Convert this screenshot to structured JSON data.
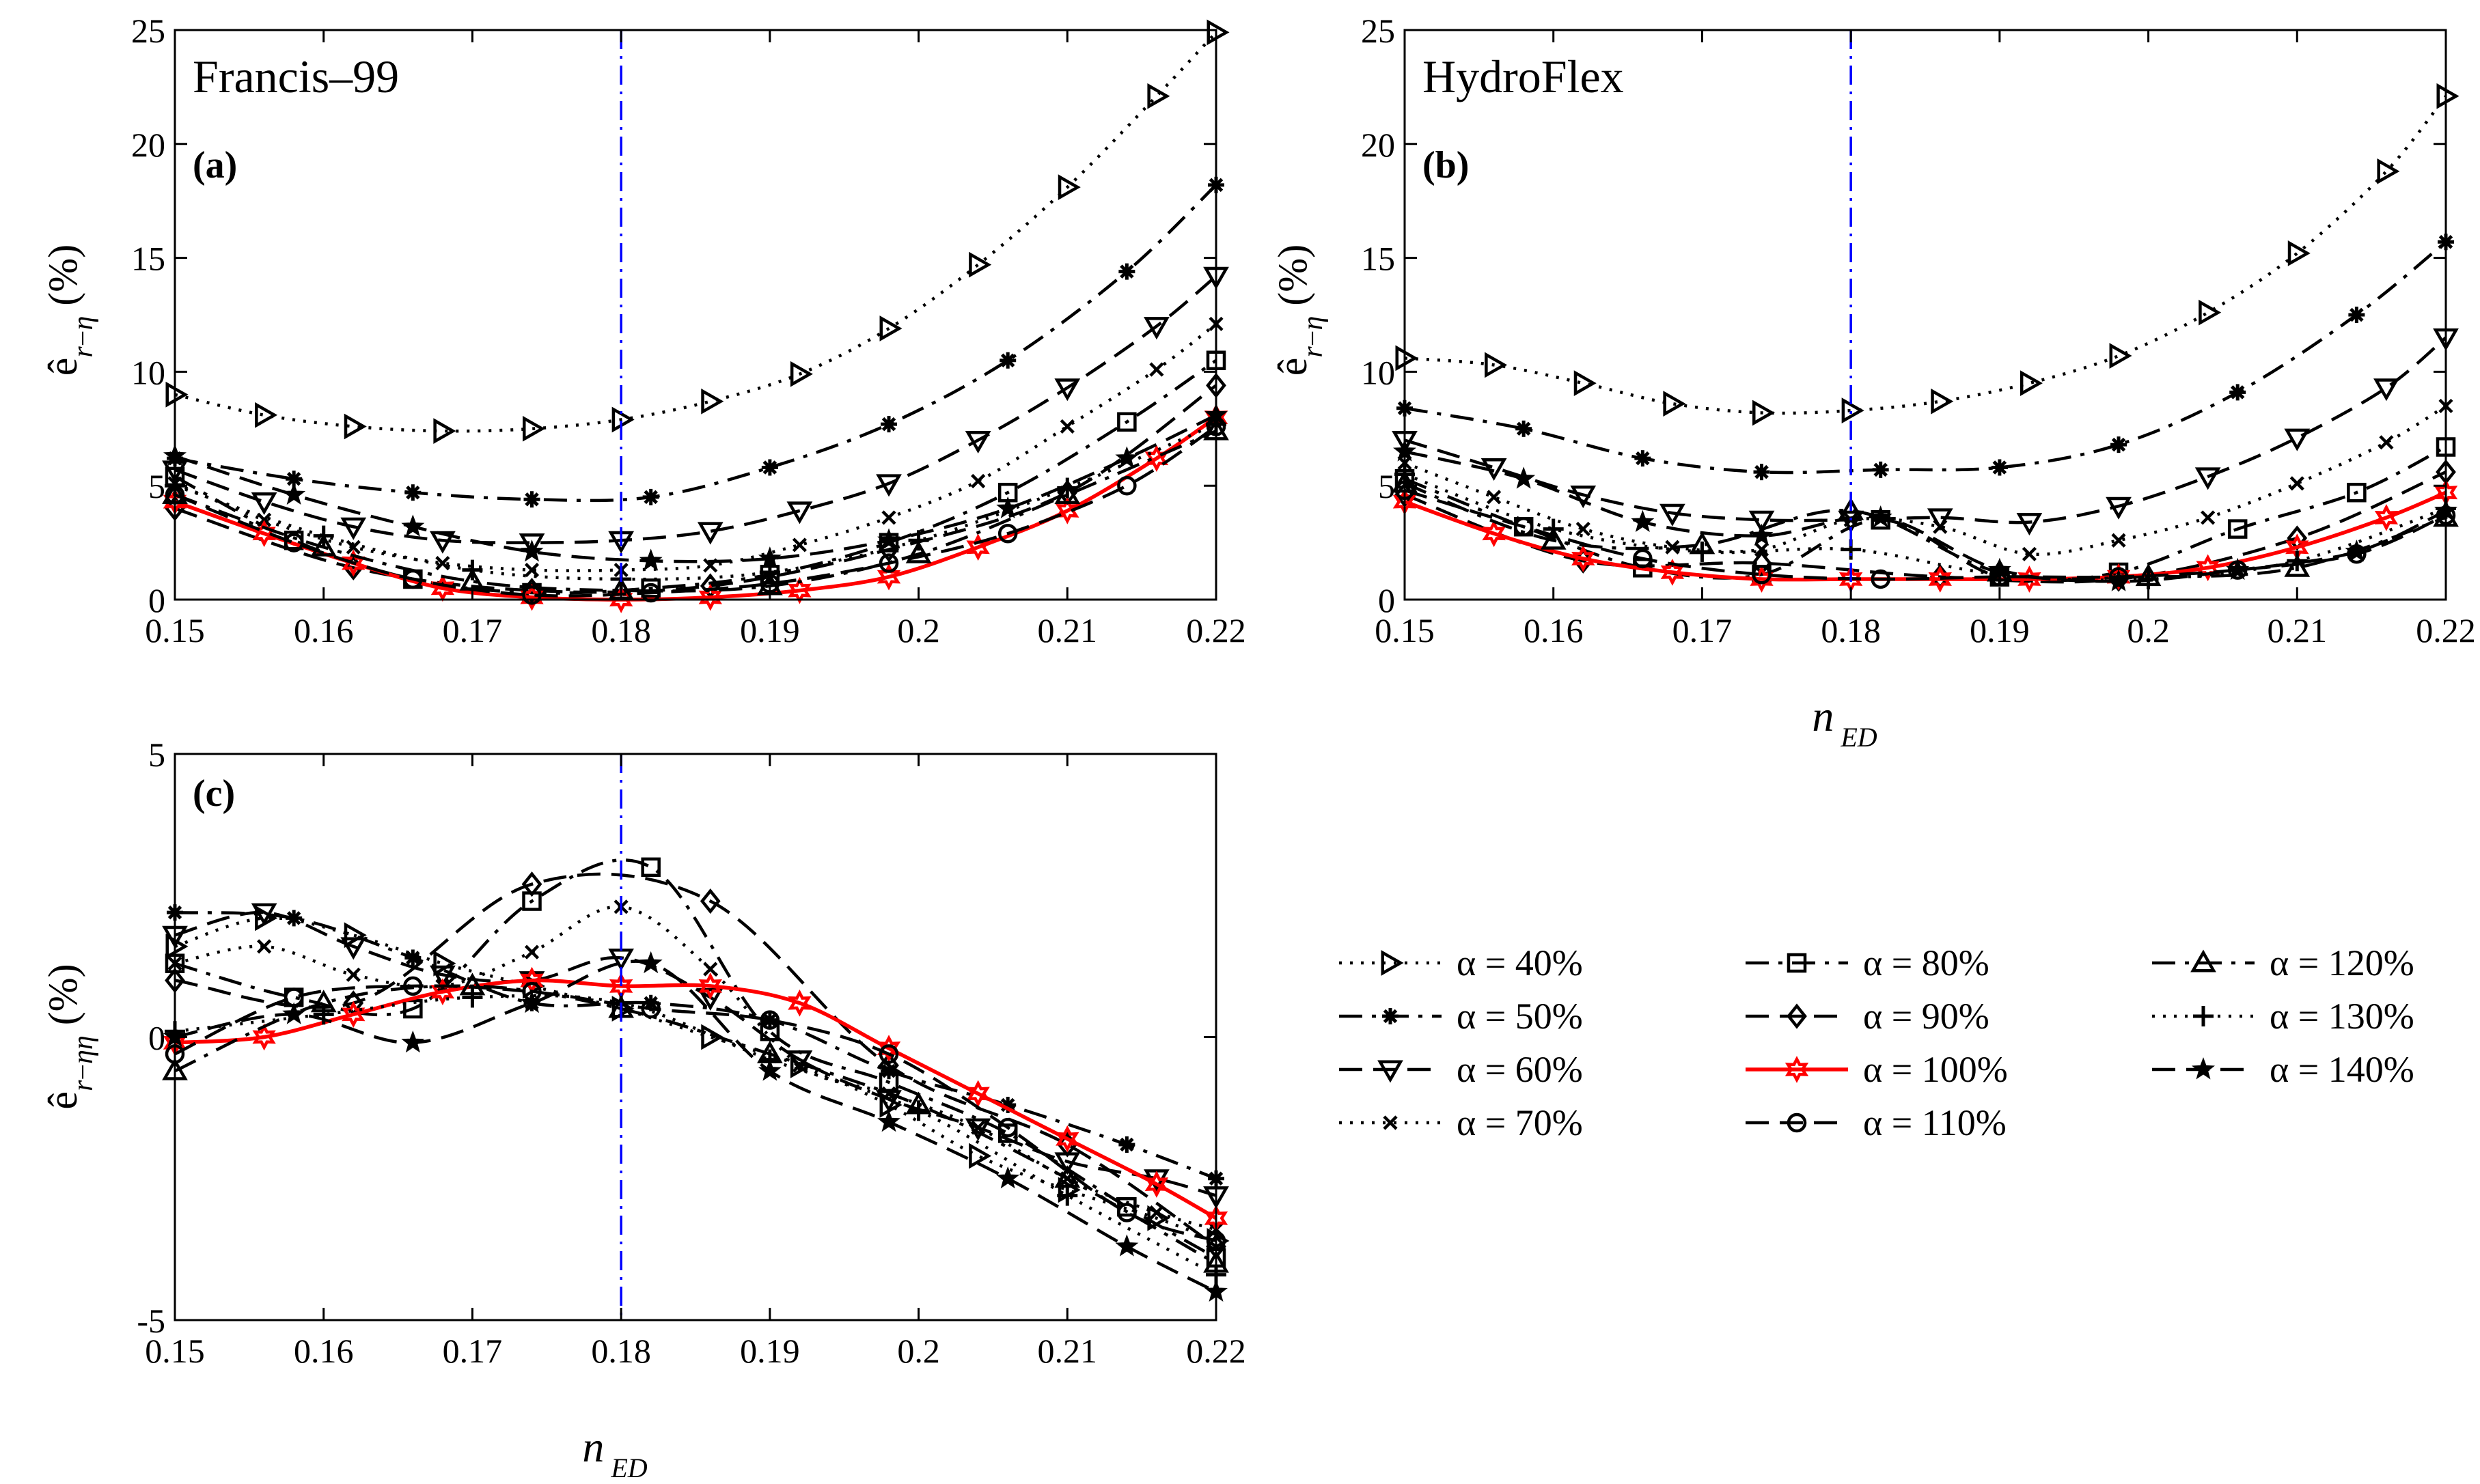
{
  "chart_data": [
    {
      "type": "line",
      "panel": "(a)",
      "title": "Francis–99",
      "xlabel": "n_ED",
      "ylabel": "ê_{r−η} (%)",
      "xlim": [
        0.15,
        0.22
      ],
      "ylim": [
        0,
        25
      ],
      "xticks": [
        "0.15",
        "0.16",
        "0.17",
        "0.18",
        "0.19",
        "0.2",
        "0.21",
        "0.22"
      ],
      "yticks": [
        "0",
        "5",
        "10",
        "15",
        "20",
        "25"
      ],
      "vline": 0.18,
      "series": [
        {
          "name": "α = 40%",
          "x": [
            0.15,
            0.156,
            0.162,
            0.168,
            0.174,
            0.18,
            0.186,
            0.192,
            0.198,
            0.204,
            0.21,
            0.216,
            0.22
          ],
          "values": [
            9.0,
            8.1,
            7.6,
            7.4,
            7.5,
            7.9,
            8.7,
            9.9,
            11.9,
            14.7,
            18.1,
            22.1,
            24.9
          ]
        },
        {
          "name": "α = 50%",
          "x": [
            0.15,
            0.158,
            0.166,
            0.174,
            0.182,
            0.19,
            0.198,
            0.206,
            0.214,
            0.22
          ],
          "values": [
            6.2,
            5.3,
            4.7,
            4.4,
            4.5,
            5.8,
            7.7,
            10.5,
            14.4,
            18.2
          ]
        },
        {
          "name": "α = 60%",
          "x": [
            0.15,
            0.156,
            0.162,
            0.168,
            0.174,
            0.18,
            0.186,
            0.192,
            0.198,
            0.204,
            0.21,
            0.216,
            0.22
          ],
          "values": [
            5.7,
            4.3,
            3.2,
            2.6,
            2.5,
            2.6,
            3.0,
            3.9,
            5.1,
            7.0,
            9.3,
            12.0,
            14.2
          ]
        },
        {
          "name": "α = 70%",
          "x": [
            0.15,
            0.156,
            0.162,
            0.168,
            0.174,
            0.18,
            0.186,
            0.192,
            0.198,
            0.204,
            0.21,
            0.216,
            0.22
          ],
          "values": [
            5.1,
            3.5,
            2.3,
            1.6,
            1.3,
            1.3,
            1.5,
            2.4,
            3.6,
            5.2,
            7.6,
            10.1,
            12.1
          ]
        },
        {
          "name": "α = 80%",
          "x": [
            0.15,
            0.158,
            0.166,
            0.174,
            0.182,
            0.19,
            0.198,
            0.206,
            0.214,
            0.22
          ],
          "values": [
            5.4,
            2.6,
            0.9,
            0.3,
            0.5,
            1.1,
            2.5,
            4.7,
            7.8,
            10.5
          ]
        },
        {
          "name": "α = 90%",
          "x": [
            0.15,
            0.162,
            0.174,
            0.186,
            0.198,
            0.21,
            0.22
          ],
          "values": [
            4.0,
            1.4,
            0.4,
            0.6,
            2.2,
            4.7,
            9.4
          ]
        },
        {
          "name": "α = 100%",
          "x": [
            0.15,
            0.156,
            0.162,
            0.168,
            0.174,
            0.18,
            0.186,
            0.192,
            0.198,
            0.204,
            0.21,
            0.216,
            0.22
          ],
          "values": [
            4.3,
            2.9,
            1.6,
            0.5,
            0.1,
            0.0,
            0.1,
            0.4,
            1.0,
            2.3,
            3.9,
            6.2,
            8.0
          ]
        },
        {
          "name": "α = 110%",
          "x": [
            0.15,
            0.158,
            0.166,
            0.174,
            0.182,
            0.19,
            0.198,
            0.206,
            0.214,
            0.22
          ],
          "values": [
            4.6,
            2.5,
            0.9,
            0.2,
            0.3,
            0.7,
            1.6,
            2.9,
            5.0,
            7.6
          ]
        },
        {
          "name": "α = 120%",
          "x": [
            0.15,
            0.16,
            0.17,
            0.18,
            0.19,
            0.2,
            0.21,
            0.22
          ],
          "values": [
            4.6,
            2.3,
            0.8,
            0.4,
            0.6,
            2.0,
            4.6,
            7.4
          ]
        },
        {
          "name": "α = 130%",
          "x": [
            0.15,
            0.16,
            0.17,
            0.18,
            0.19,
            0.2,
            0.21,
            0.22
          ],
          "values": [
            5.0,
            2.8,
            1.3,
            0.9,
            1.2,
            2.6,
            4.9,
            7.7
          ]
        },
        {
          "name": "α = 140%",
          "x": [
            0.15,
            0.158,
            0.166,
            0.174,
            0.182,
            0.19,
            0.198,
            0.206,
            0.214,
            0.22
          ],
          "values": [
            6.3,
            4.6,
            3.2,
            2.1,
            1.7,
            1.8,
            2.6,
            4.0,
            6.2,
            8.1
          ]
        }
      ]
    },
    {
      "type": "line",
      "panel": "(b)",
      "title": "HydroFlex",
      "xlabel": "n_ED",
      "ylabel": "ê_{r−η} (%)",
      "xlim": [
        0.15,
        0.22
      ],
      "ylim": [
        0,
        25
      ],
      "xticks": [
        "0.15",
        "0.16",
        "0.17",
        "0.18",
        "0.19",
        "0.2",
        "0.21",
        "0.22"
      ],
      "yticks": [
        "0",
        "5",
        "10",
        "15",
        "20",
        "25"
      ],
      "vline": 0.18,
      "series": [
        {
          "name": "α = 40%",
          "x": [
            0.15,
            0.156,
            0.162,
            0.168,
            0.174,
            0.18,
            0.186,
            0.192,
            0.198,
            0.204,
            0.21,
            0.216,
            0.22
          ],
          "values": [
            10.6,
            10.3,
            9.5,
            8.6,
            8.2,
            8.3,
            8.7,
            9.5,
            10.7,
            12.6,
            15.2,
            18.8,
            22.1
          ]
        },
        {
          "name": "α = 50%",
          "x": [
            0.15,
            0.158,
            0.166,
            0.174,
            0.182,
            0.19,
            0.198,
            0.206,
            0.214,
            0.22
          ],
          "values": [
            8.4,
            7.5,
            6.2,
            5.6,
            5.7,
            5.8,
            6.8,
            9.1,
            12.5,
            15.7
          ]
        },
        {
          "name": "α = 60%",
          "x": [
            0.15,
            0.156,
            0.162,
            0.168,
            0.174,
            0.18,
            0.186,
            0.192,
            0.198,
            0.204,
            0.21,
            0.216,
            0.22
          ],
          "values": [
            7.0,
            5.8,
            4.6,
            3.8,
            3.5,
            3.5,
            3.6,
            3.4,
            4.1,
            5.4,
            7.1,
            9.3,
            11.5
          ]
        },
        {
          "name": "α = 70%",
          "x": [
            0.15,
            0.156,
            0.162,
            0.168,
            0.174,
            0.18,
            0.186,
            0.192,
            0.198,
            0.204,
            0.21,
            0.216,
            0.22
          ],
          "values": [
            6.0,
            4.5,
            3.1,
            2.3,
            2.2,
            3.5,
            3.2,
            2.0,
            2.6,
            3.6,
            5.1,
            6.9,
            8.5
          ]
        },
        {
          "name": "α = 80%",
          "x": [
            0.15,
            0.158,
            0.166,
            0.174,
            0.182,
            0.19,
            0.198,
            0.206,
            0.214,
            0.22
          ],
          "values": [
            5.3,
            3.2,
            1.4,
            1.1,
            3.5,
            1.0,
            1.2,
            3.1,
            4.7,
            6.7
          ]
        },
        {
          "name": "α = 90%",
          "x": [
            0.15,
            0.162,
            0.174,
            0.186,
            0.198,
            0.21,
            0.22
          ],
          "values": [
            4.6,
            1.7,
            1.6,
            1.0,
            0.9,
            2.7,
            5.6
          ]
        },
        {
          "name": "α = 100%",
          "x": [
            0.15,
            0.156,
            0.162,
            0.168,
            0.174,
            0.18,
            0.186,
            0.192,
            0.198,
            0.204,
            0.21,
            0.216,
            0.22
          ],
          "values": [
            4.3,
            2.9,
            1.8,
            1.2,
            0.9,
            0.9,
            0.9,
            0.9,
            1.0,
            1.4,
            2.3,
            3.6,
            4.7
          ]
        },
        {
          "name": "α = 110%",
          "x": [
            0.15,
            0.158,
            0.166,
            0.174,
            0.182,
            0.19,
            0.198,
            0.206,
            0.214,
            0.22
          ],
          "values": [
            4.8,
            3.2,
            1.8,
            1.1,
            0.9,
            1.0,
            1.0,
            1.3,
            2.0,
            3.7
          ]
        },
        {
          "name": "α = 120%",
          "x": [
            0.15,
            0.16,
            0.17,
            0.18,
            0.19,
            0.2,
            0.21,
            0.22
          ],
          "values": [
            5.1,
            2.6,
            2.4,
            3.9,
            1.2,
            1.0,
            1.4,
            3.6
          ]
        },
        {
          "name": "α = 130%",
          "x": [
            0.15,
            0.16,
            0.17,
            0.18,
            0.19,
            0.2,
            0.21,
            0.22
          ],
          "values": [
            5.5,
            3.1,
            2.1,
            2.2,
            1.1,
            0.9,
            1.7,
            4.0
          ]
        },
        {
          "name": "α = 140%",
          "x": [
            0.15,
            0.158,
            0.166,
            0.174,
            0.182,
            0.19,
            0.198,
            0.206,
            0.214,
            0.22
          ],
          "values": [
            6.5,
            5.3,
            3.4,
            2.8,
            3.6,
            1.3,
            0.8,
            1.3,
            2.1,
            3.9
          ]
        }
      ]
    },
    {
      "type": "line",
      "panel": "(c)",
      "title": "",
      "xlabel": "n_ED",
      "ylabel": "ê_{r−ηη} (%)",
      "xlim": [
        0.15,
        0.22
      ],
      "ylim": [
        -5,
        5
      ],
      "xticks": [
        "0.15",
        "0.16",
        "0.17",
        "0.18",
        "0.19",
        "0.2",
        "0.21",
        "0.22"
      ],
      "yticks": [
        "-5",
        "0",
        "5"
      ],
      "vline": 0.18,
      "series": [
        {
          "name": "α = 40%",
          "x": [
            0.15,
            0.156,
            0.162,
            0.168,
            0.174,
            0.18,
            0.186,
            0.192,
            0.198,
            0.204,
            0.21,
            0.216,
            0.22
          ],
          "values": [
            1.6,
            2.1,
            1.8,
            1.3,
            0.9,
            0.5,
            0.0,
            -0.5,
            -1.2,
            -2.1,
            -2.7,
            -3.2,
            -3.6
          ]
        },
        {
          "name": "α = 50%",
          "x": [
            0.15,
            0.158,
            0.166,
            0.174,
            0.182,
            0.19,
            0.198,
            0.206,
            0.214,
            0.22
          ],
          "values": [
            2.2,
            2.1,
            1.4,
            0.6,
            0.6,
            0.3,
            -0.6,
            -1.2,
            -1.9,
            -2.5
          ]
        },
        {
          "name": "α = 60%",
          "x": [
            0.15,
            0.156,
            0.162,
            0.168,
            0.174,
            0.18,
            0.186,
            0.192,
            0.198,
            0.204,
            0.21,
            0.216,
            0.22
          ],
          "values": [
            1.8,
            2.2,
            1.6,
            1.1,
            1.0,
            1.4,
            0.7,
            -0.4,
            -1.1,
            -1.6,
            -2.2,
            -2.5,
            -2.8
          ]
        },
        {
          "name": "α = 70%",
          "x": [
            0.15,
            0.156,
            0.162,
            0.168,
            0.174,
            0.18,
            0.186,
            0.192,
            0.198,
            0.204,
            0.21,
            0.216,
            0.22
          ],
          "values": [
            1.3,
            1.6,
            1.1,
            0.9,
            1.5,
            2.3,
            1.2,
            -0.5,
            -1.0,
            -1.6,
            -2.5,
            -3.1,
            -3.4
          ]
        },
        {
          "name": "α = 80%",
          "x": [
            0.15,
            0.158,
            0.166,
            0.174,
            0.182,
            0.19,
            0.198,
            0.206,
            0.214,
            0.22
          ],
          "values": [
            1.3,
            0.7,
            0.5,
            2.4,
            3.0,
            0.1,
            -0.8,
            -1.7,
            -3.0,
            -3.9
          ]
        },
        {
          "name": "α = 90%",
          "x": [
            0.15,
            0.162,
            0.174,
            0.186,
            0.198,
            0.21,
            0.22
          ],
          "values": [
            1.0,
            0.6,
            2.7,
            2.4,
            -0.5,
            -1.9,
            -3.7
          ]
        },
        {
          "name": "α = 100%",
          "x": [
            0.15,
            0.156,
            0.162,
            0.168,
            0.174,
            0.18,
            0.186,
            0.192,
            0.198,
            0.204,
            0.21,
            0.216,
            0.22
          ],
          "values": [
            -0.1,
            0.0,
            0.4,
            0.8,
            1.0,
            0.9,
            0.9,
            0.6,
            -0.2,
            -1.0,
            -1.8,
            -2.6,
            -3.2
          ]
        },
        {
          "name": "α = 110%",
          "x": [
            0.15,
            0.158,
            0.166,
            0.174,
            0.182,
            0.19,
            0.198,
            0.206,
            0.214,
            0.22
          ],
          "values": [
            -0.3,
            0.7,
            0.9,
            0.8,
            0.5,
            0.3,
            -0.3,
            -1.6,
            -3.1,
            -3.6
          ]
        },
        {
          "name": "α = 120%",
          "x": [
            0.15,
            0.16,
            0.17,
            0.18,
            0.19,
            0.2,
            0.21,
            0.22
          ],
          "values": [
            -0.6,
            0.6,
            0.9,
            0.5,
            -0.3,
            -1.2,
            -2.5,
            -4.0
          ]
        },
        {
          "name": "α = 130%",
          "x": [
            0.15,
            0.16,
            0.17,
            0.18,
            0.19,
            0.2,
            0.21,
            0.22
          ],
          "values": [
            0.1,
            0.4,
            0.7,
            0.6,
            -0.4,
            -1.3,
            -2.8,
            -4.2
          ]
        },
        {
          "name": "α = 140%",
          "x": [
            0.15,
            0.158,
            0.166,
            0.174,
            0.182,
            0.19,
            0.198,
            0.206,
            0.214,
            0.22
          ],
          "values": [
            0.0,
            0.4,
            -0.1,
            0.6,
            1.3,
            -0.6,
            -1.5,
            -2.5,
            -3.7,
            -4.5
          ]
        }
      ]
    }
  ],
  "legend": [
    {
      "label": "α = 40%",
      "marker": "tri-right",
      "dash": "dotted",
      "color": "#000000"
    },
    {
      "label": "α = 50%",
      "marker": "asterisk",
      "dash": "dashdot",
      "color": "#000000"
    },
    {
      "label": "α = 60%",
      "marker": "tri-down",
      "dash": "dashed",
      "color": "#000000"
    },
    {
      "label": "α = 70%",
      "marker": "cross",
      "dash": "dotted",
      "color": "#000000"
    },
    {
      "label": "α = 80%",
      "marker": "square",
      "dash": "dashdot",
      "color": "#000000"
    },
    {
      "label": "α = 90%",
      "marker": "diamond",
      "dash": "dashed",
      "color": "#000000"
    },
    {
      "label": "α = 100%",
      "marker": "hexagram",
      "dash": "solid",
      "color": "#ff0000"
    },
    {
      "label": "α = 110%",
      "marker": "circle",
      "dash": "dashed",
      "color": "#000000"
    },
    {
      "label": "α = 120%",
      "marker": "tri-up",
      "dash": "dashdot",
      "color": "#000000"
    },
    {
      "label": "α = 130%",
      "marker": "plus",
      "dash": "dotted",
      "color": "#000000"
    },
    {
      "label": "α = 140%",
      "marker": "star",
      "dash": "dashed",
      "color": "#000000"
    }
  ],
  "colors": {
    "vline": "#0000ff",
    "highlight": "#ff0000",
    "axis": "#000000"
  }
}
